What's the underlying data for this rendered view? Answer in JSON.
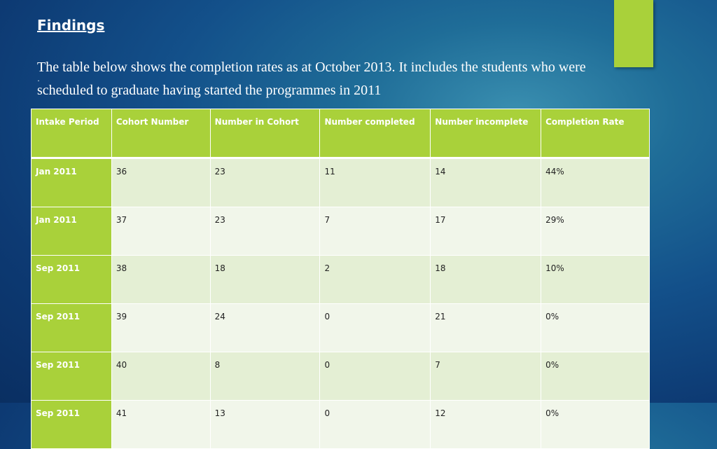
{
  "slide": {
    "title": "Findings",
    "body_line1": "The table below shows the completion rates as at October 2013. It includes the students who were",
    "bullet": "·",
    "body_line2": "scheduled to graduate having started the programmes in 2011"
  },
  "colors": {
    "accent": "#a9d13a",
    "background": "#13508a"
  },
  "table": {
    "headers": [
      "Intake Period",
      "Cohort Number",
      "Number in Cohort",
      "Number completed",
      "Number incomplete",
      "Completion Rate"
    ],
    "rows": [
      [
        "Jan 2011",
        "36",
        "23",
        "11",
        "14",
        "44%"
      ],
      [
        "Jan 2011",
        "37",
        "23",
        "7",
        "17",
        "29%"
      ],
      [
        "Sep 2011",
        "38",
        "18",
        "2",
        "18",
        "10%"
      ],
      [
        "Sep 2011",
        "39",
        "24",
        "0",
        "21",
        "0%"
      ],
      [
        "Sep 2011",
        "40",
        "8",
        "0",
        "7",
        "0%"
      ],
      [
        "Sep 2011",
        "41",
        "13",
        "0",
        "12",
        "0%"
      ]
    ]
  }
}
